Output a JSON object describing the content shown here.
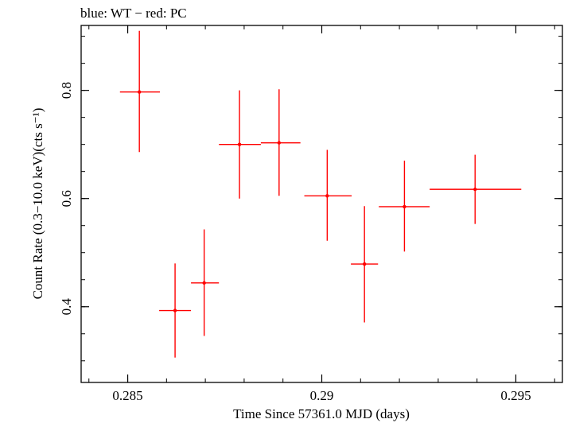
{
  "chart_data": {
    "type": "scatter",
    "title": "blue: WT − red: PC",
    "xlabel": "Time Since 57361.0 MJD (days)",
    "ylabel": "Count Rate (0.3−10.0 keV)(cts s⁻¹)",
    "xlim": [
      0.2838,
      0.2962
    ],
    "ylim": [
      0.26,
      0.92
    ],
    "x_ticks": [
      "0.285",
      "0.29",
      "0.295"
    ],
    "y_ticks": [
      "0.4",
      "0.6",
      "0.8"
    ],
    "grid": false,
    "series": [
      {
        "color": "#ff0000",
        "points": [
          {
            "x": 0.2853,
            "xlo": 0.2848,
            "xhi": 0.28583,
            "y": 0.797,
            "ylo": 0.686,
            "yhi": 0.91
          },
          {
            "x": 0.28622,
            "xlo": 0.28581,
            "xhi": 0.28663,
            "y": 0.393,
            "ylo": 0.306,
            "yhi": 0.48
          },
          {
            "x": 0.28697,
            "xlo": 0.28663,
            "xhi": 0.28735,
            "y": 0.444,
            "ylo": 0.346,
            "yhi": 0.543
          },
          {
            "x": 0.28788,
            "xlo": 0.28735,
            "xhi": 0.28843,
            "y": 0.7,
            "ylo": 0.6,
            "yhi": 0.8
          },
          {
            "x": 0.2889,
            "xlo": 0.28843,
            "xhi": 0.28945,
            "y": 0.703,
            "ylo": 0.605,
            "yhi": 0.802
          },
          {
            "x": 0.29014,
            "xlo": 0.28955,
            "xhi": 0.29077,
            "y": 0.605,
            "ylo": 0.522,
            "yhi": 0.69
          },
          {
            "x": 0.2911,
            "xlo": 0.29075,
            "xhi": 0.29145,
            "y": 0.479,
            "ylo": 0.371,
            "yhi": 0.586
          },
          {
            "x": 0.29213,
            "xlo": 0.29147,
            "xhi": 0.29278,
            "y": 0.585,
            "ylo": 0.502,
            "yhi": 0.67
          },
          {
            "x": 0.29395,
            "xlo": 0.29278,
            "xhi": 0.29514,
            "y": 0.617,
            "ylo": 0.553,
            "yhi": 0.681
          }
        ]
      }
    ]
  }
}
